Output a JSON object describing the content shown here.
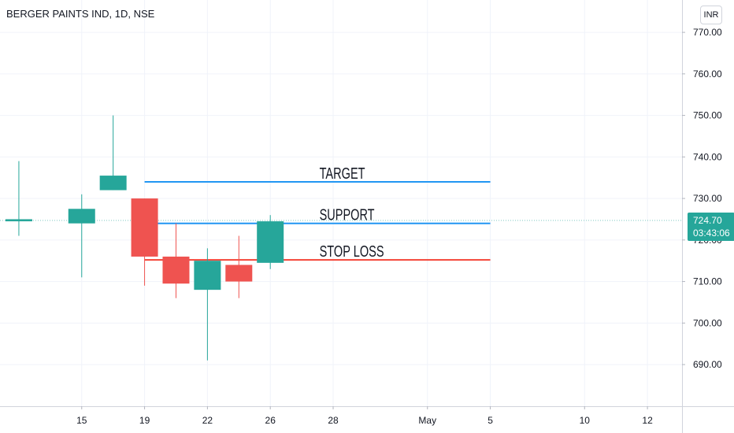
{
  "header": {
    "title": "BERGER PAINTS IND, 1D, NSE",
    "currency": "INR"
  },
  "price_tag": {
    "price": "724.70",
    "countdown": "03:43:06",
    "color": "#26a69a"
  },
  "colors": {
    "up": "#26a69a",
    "down": "#ef5350",
    "target": "#2196f3",
    "support": "#2196f3",
    "stop": "#f44336",
    "grid": "#f0f3fa",
    "axis_text": "#131722"
  },
  "chart_data": {
    "type": "candlestick",
    "title": "BERGER PAINTS IND, 1D, NSE",
    "ylim": [
      683,
      774
    ],
    "y_ticks": [
      690,
      700,
      710,
      720,
      730,
      740,
      750,
      760,
      770
    ],
    "y_tick_labels": [
      "690.00",
      "700.00",
      "710.00",
      "720.00",
      "730.00",
      "740.00",
      "750.00",
      "760.00",
      "770.00"
    ],
    "x_ticks": [
      {
        "label": "15",
        "day": 3
      },
      {
        "label": "19",
        "day": 5
      },
      {
        "label": "22",
        "day": 7
      },
      {
        "label": "26",
        "day": 9
      },
      {
        "label": "28",
        "day": 11
      },
      {
        "label": "May",
        "day": 14
      },
      {
        "label": "5",
        "day": 16
      },
      {
        "label": "10",
        "day": 19
      },
      {
        "label": "12",
        "day": 21
      }
    ],
    "xlim": [
      0.4,
      22.1
    ],
    "candles": [
      {
        "day": 1,
        "open": 724.5,
        "high": 739,
        "low": 721,
        "close": 725.0
      },
      {
        "day": 3,
        "open": 724.0,
        "high": 731,
        "low": 711,
        "close": 727.5
      },
      {
        "day": 4,
        "open": 732.0,
        "high": 750,
        "low": 732,
        "close": 735.5
      },
      {
        "day": 5,
        "open": 730.0,
        "high": 730,
        "low": 709,
        "close": 716.0
      },
      {
        "day": 6,
        "open": 716.0,
        "high": 724,
        "low": 706,
        "close": 709.5
      },
      {
        "day": 7,
        "open": 708.0,
        "high": 718,
        "low": 691,
        "close": 715.0
      },
      {
        "day": 8,
        "open": 714.0,
        "high": 721,
        "low": 706,
        "close": 710.0
      },
      {
        "day": 9,
        "open": 714.5,
        "high": 726,
        "low": 713,
        "close": 724.5
      }
    ],
    "levels": [
      {
        "name": "TARGET",
        "value": 734.0,
        "from_day": 5,
        "to_day": 16
      },
      {
        "name": "SUPPORT",
        "value": 724.0,
        "from_day": 5,
        "to_day": 16
      },
      {
        "name": "STOP LOSS",
        "value": 715.2,
        "from_day": 5,
        "to_day": 16
      }
    ],
    "last_price": 724.7
  }
}
